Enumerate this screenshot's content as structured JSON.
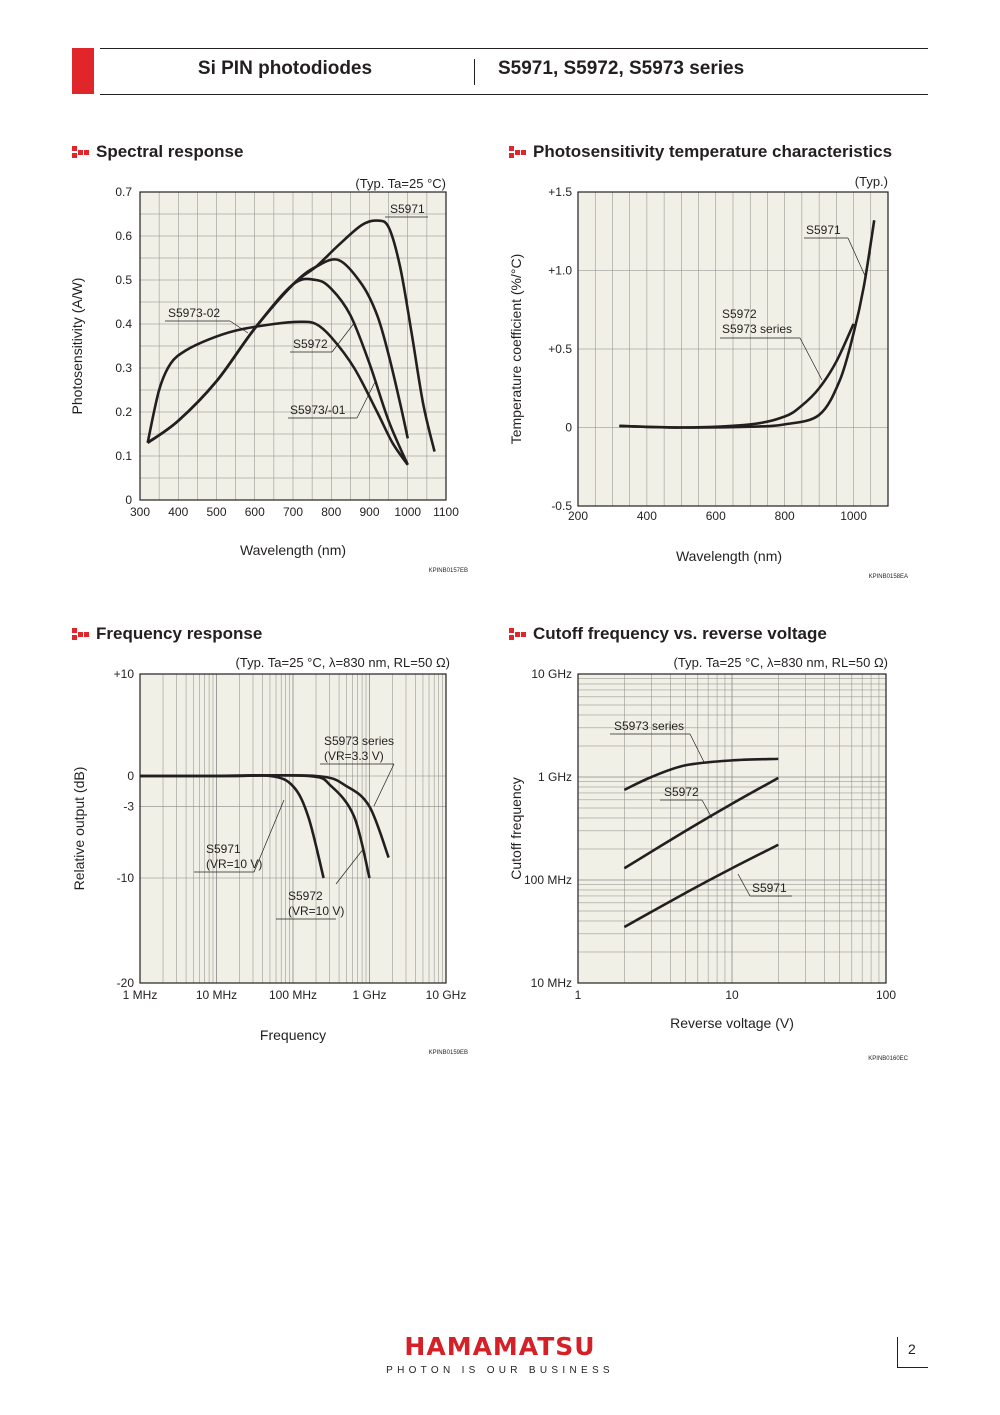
{
  "header": {
    "product_type": "Si PIN photodiodes",
    "series": "S5971, S5972, S5973 series"
  },
  "sections": {
    "spectral": "Spectral response",
    "tempchar": "Photosensitivity temperature characteristics",
    "frequency": "Frequency response",
    "cutoff": "Cutoff frequency vs. reverse voltage"
  },
  "footer": {
    "logo": "HAMAMATSU",
    "tagline": "PHOTON IS OUR BUSINESS",
    "page_number": "2"
  },
  "colors": {
    "brand_red": "#e0262b",
    "plot_bg": "#f1f0e6",
    "curve": "#231f20"
  },
  "chart_data": [
    {
      "id": "spectral",
      "type": "line",
      "code": "KPINB0157EB",
      "condition": "(Typ. Ta=25 °C)",
      "xlabel": "Wavelength (nm)",
      "ylabel": "Photosensitivity (A/W)",
      "xlim": [
        300,
        1100
      ],
      "ylim": [
        0,
        0.7
      ],
      "xticks": [
        "300",
        "400",
        "500",
        "600",
        "700",
        "800",
        "900",
        "1000",
        "1100"
      ],
      "yticks": [
        "0",
        "0.1",
        "0.2",
        "0.3",
        "0.4",
        "0.5",
        "0.6",
        "0.7"
      ],
      "grid": true,
      "series": [
        {
          "name": "S5971",
          "label_at": [
            920,
            0.66
          ],
          "x": [
            320,
            400,
            500,
            600,
            700,
            760,
            820,
            880,
            920,
            950,
            980,
            1010,
            1040,
            1070
          ],
          "y": [
            0.13,
            0.18,
            0.27,
            0.39,
            0.49,
            0.53,
            0.58,
            0.625,
            0.635,
            0.62,
            0.53,
            0.38,
            0.22,
            0.11
          ]
        },
        {
          "name": "S5972",
          "label_at": [
            750,
            0.35
          ],
          "x": [
            320,
            400,
            500,
            600,
            700,
            760,
            820,
            880,
            920,
            950,
            980,
            1000
          ],
          "y": [
            0.13,
            0.18,
            0.27,
            0.39,
            0.49,
            0.53,
            0.545,
            0.49,
            0.42,
            0.33,
            0.22,
            0.14
          ]
        },
        {
          "name": "S5973/-01",
          "label_at": [
            780,
            0.2
          ],
          "x": [
            320,
            400,
            500,
            600,
            700,
            760,
            800,
            850,
            900,
            950,
            1000
          ],
          "y": [
            0.13,
            0.18,
            0.27,
            0.39,
            0.49,
            0.5,
            0.48,
            0.42,
            0.31,
            0.18,
            0.08
          ]
        },
        {
          "name": "S5973-02",
          "label_at": [
            420,
            0.42
          ],
          "x": [
            320,
            350,
            380,
            420,
            480,
            550,
            650,
            720,
            760,
            800,
            860,
            920,
            960,
            1000
          ],
          "y": [
            0.13,
            0.25,
            0.31,
            0.34,
            0.365,
            0.385,
            0.4,
            0.405,
            0.4,
            0.37,
            0.3,
            0.2,
            0.13,
            0.08
          ]
        }
      ]
    },
    {
      "id": "tempchar",
      "type": "line",
      "code": "KPINB0158EA",
      "condition": "(Typ.)",
      "xlabel": "Wavelength (nm)",
      "ylabel": "Temperature coefficient (%/°C)",
      "xlim": [
        200,
        1100
      ],
      "ylim": [
        -0.5,
        1.5
      ],
      "xticks": [
        "200",
        "400",
        "600",
        "800",
        "1000"
      ],
      "yticks": [
        "-0.5",
        "0",
        "+0.5",
        "+1.0",
        "+1.5"
      ],
      "grid": true,
      "series": [
        {
          "name": "S5971",
          "label_at": [
            1000,
            1.25
          ],
          "x": [
            320,
            500,
            700,
            800,
            900,
            960,
            1000,
            1030,
            1060
          ],
          "y": [
            0.01,
            0.0,
            0.005,
            0.02,
            0.08,
            0.3,
            0.6,
            0.9,
            1.32
          ]
        },
        {
          "name": "S5972\nS5973 series",
          "label_at": [
            870,
            0.6
          ],
          "x": [
            320,
            500,
            700,
            800,
            850,
            900,
            950,
            1000
          ],
          "y": [
            0.01,
            0.0,
            0.02,
            0.07,
            0.14,
            0.25,
            0.42,
            0.66
          ]
        }
      ]
    },
    {
      "id": "frequency",
      "type": "line",
      "code": "KPINB0159EB",
      "condition": "(Typ. Ta=25 °C, λ=830 nm, RL=50 Ω)",
      "xlabel": "Frequency",
      "ylabel": "Relative output (dB)",
      "xscale": "log",
      "xticks": [
        "1 MHz",
        "10 MHz",
        "100 MHz",
        "1 GHz",
        "10 GHz"
      ],
      "yticks": [
        "-20",
        "-10",
        "-3",
        "0",
        "+10"
      ],
      "ylim": [
        -20,
        10
      ],
      "grid": true,
      "series": [
        {
          "name": "S5971\n(VR=10 V)",
          "x_log10_hz": [
            6,
            7,
            7.7,
            8,
            8.2,
            8.4
          ],
          "y": [
            0,
            0,
            0,
            -1,
            -4,
            -10
          ]
        },
        {
          "name": "S5972\n(VR=10 V)",
          "x_log10_hz": [
            6,
            7,
            8.2,
            8.5,
            8.8,
            9.0
          ],
          "y": [
            0,
            0,
            0,
            -1,
            -4,
            -10
          ]
        },
        {
          "name": "S5973 series\n(VR=3.3 V)",
          "x_log10_hz": [
            6,
            7,
            8.3,
            8.7,
            9.0,
            9.25
          ],
          "y": [
            0,
            0,
            0,
            -1,
            -3,
            -8
          ]
        }
      ]
    },
    {
      "id": "cutoff",
      "type": "line",
      "code": "KPINB0160EC",
      "condition": "(Typ. Ta=25 °C, λ=830 nm, RL=50 Ω)",
      "xlabel": "Reverse voltage (V)",
      "ylabel": "Cutoff frequency",
      "xscale": "log",
      "yscale": "log",
      "xticks": [
        "1",
        "10",
        "100"
      ],
      "yticks": [
        "10 MHz",
        "100 MHz",
        "1 GHz",
        "10 GHz"
      ],
      "grid": true,
      "series": [
        {
          "name": "S5973 series",
          "x": [
            2,
            3,
            5,
            10,
            20
          ],
          "y_hz": [
            750000000.0,
            1000000000.0,
            1300000000.0,
            1450000000.0,
            1500000000.0
          ]
        },
        {
          "name": "S5972",
          "x": [
            2,
            5,
            10,
            20
          ],
          "y_hz": [
            130000000.0,
            300000000.0,
            550000000.0,
            980000000.0
          ]
        },
        {
          "name": "S5971",
          "x": [
            2,
            5,
            10,
            20
          ],
          "y_hz": [
            35000000.0,
            75000000.0,
            130000000.0,
            220000000.0
          ]
        }
      ]
    }
  ]
}
